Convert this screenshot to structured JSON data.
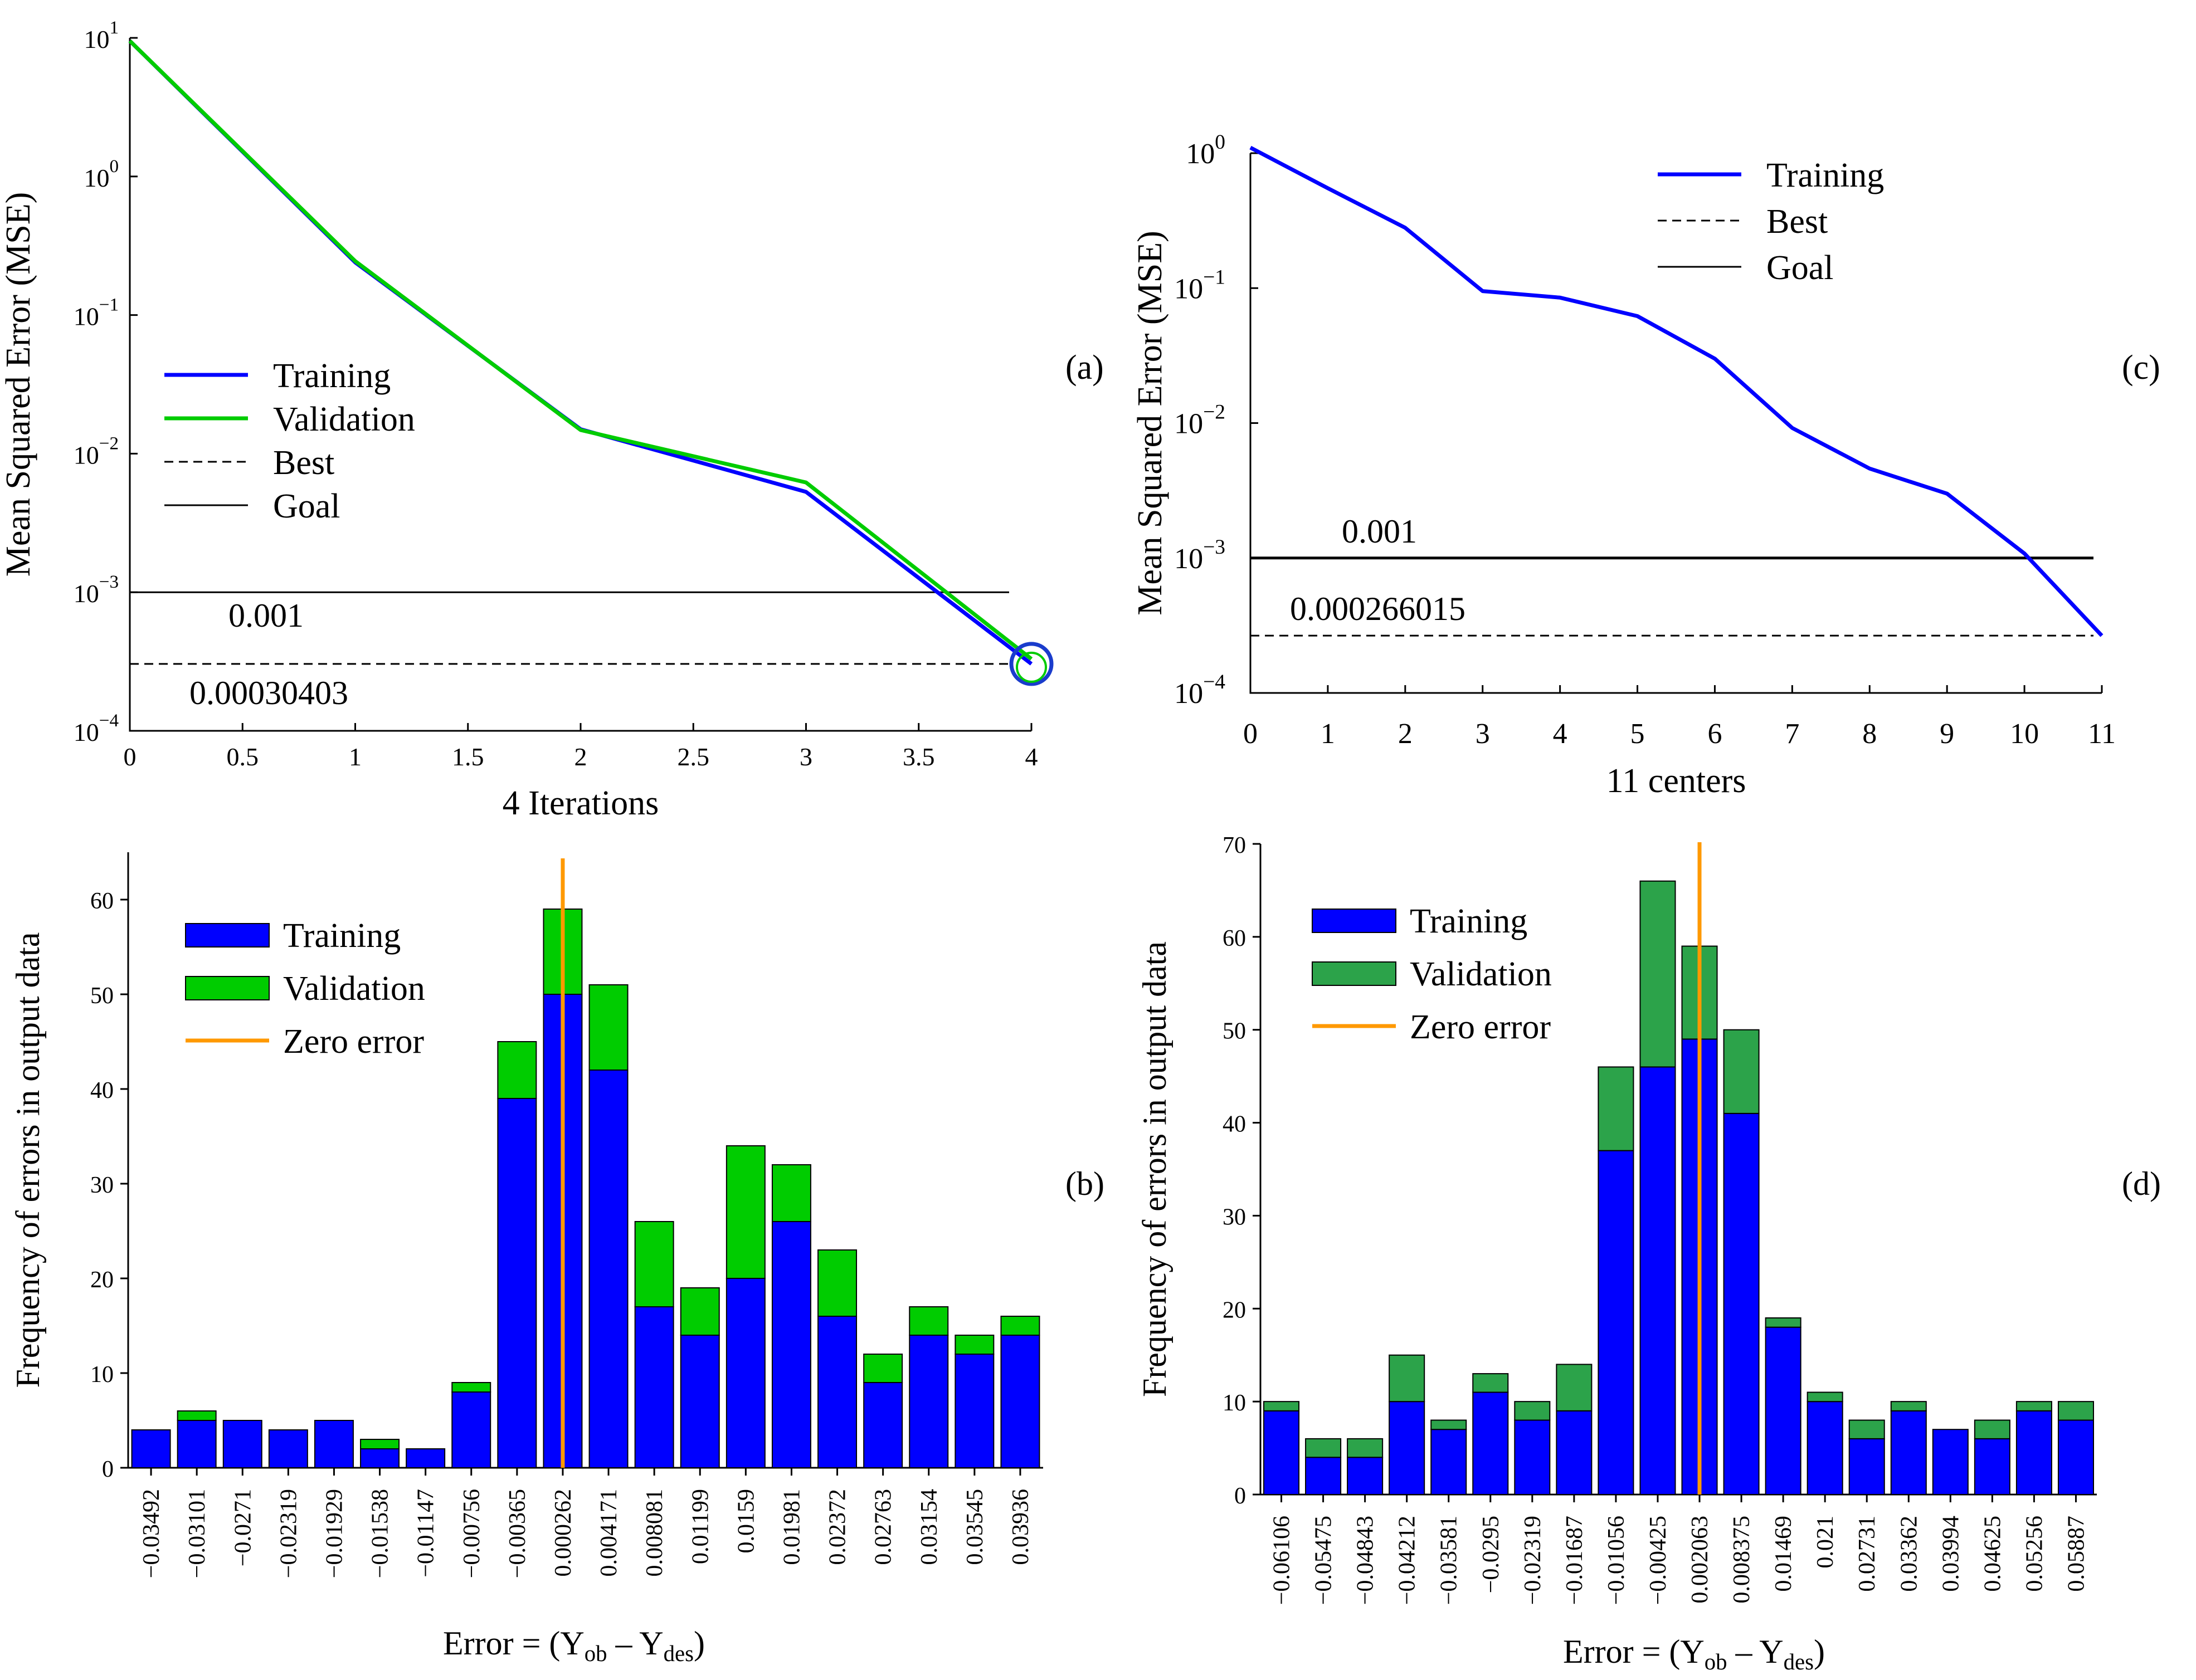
{
  "colors": {
    "training": "#0000ff",
    "validation": "#00cc00",
    "validation_d": "#2ca34a",
    "zero_error": "#ff9900",
    "best_circle": "#1a3ccc"
  },
  "chart_data": [
    {
      "id": "a",
      "panel_label": "(a)",
      "type": "line",
      "scale_y": "log",
      "xlabel": "4  Iterations",
      "ylabel": "Mean Squared Error (MSE)",
      "xlim": [
        0,
        4
      ],
      "ylim": [
        0.0001,
        10
      ],
      "x_ticks": [
        "0",
        "0.5",
        "1",
        "1.5",
        "2",
        "2.5",
        "3",
        "3.5",
        "4"
      ],
      "y_ticks": [
        {
          "base": "10",
          "exp": "1"
        },
        {
          "base": "10",
          "exp": "0"
        },
        {
          "base": "10",
          "exp": "−1"
        },
        {
          "base": "10",
          "exp": "−2"
        },
        {
          "base": "10",
          "exp": "−3"
        },
        {
          "base": "10",
          "exp": "−4"
        }
      ],
      "series": [
        {
          "name": "Training",
          "x": [
            0,
            1,
            2,
            3,
            4
          ],
          "y": [
            9.5,
            0.24,
            0.015,
            0.0053,
            0.00030403
          ]
        },
        {
          "name": "Validation",
          "x": [
            0,
            1,
            2,
            3,
            4
          ],
          "y": [
            9.5,
            0.245,
            0.0148,
            0.0062,
            0.00033
          ]
        }
      ],
      "goal": 0.001,
      "goal_label": "0.001",
      "best": 0.00030403,
      "best_label": "0.00030403",
      "legend": [
        "Training",
        "Validation",
        "Best",
        "Goal"
      ],
      "legend_position": "middle-left",
      "grid": false
    },
    {
      "id": "c",
      "panel_label": "(c)",
      "type": "line",
      "scale_y": "log",
      "xlabel": "11 centers",
      "ylabel": "Mean Squared Error (MSE)",
      "xlim": [
        0,
        11
      ],
      "ylim": [
        0.0001,
        1
      ],
      "x_ticks": [
        "0",
        "1",
        "2",
        "3",
        "4",
        "5",
        "6",
        "7",
        "8",
        "9",
        "10",
        "11"
      ],
      "y_ticks": [
        {
          "base": "10",
          "exp": "0"
        },
        {
          "base": "10",
          "exp": "−1"
        },
        {
          "base": "10",
          "exp": "−2"
        },
        {
          "base": "10",
          "exp": "−3"
        },
        {
          "base": "10",
          "exp": "−4"
        }
      ],
      "series": [
        {
          "name": "Training",
          "x": [
            0,
            1,
            2,
            3,
            4,
            5,
            6,
            7,
            8,
            9,
            10,
            11
          ],
          "y": [
            1.1,
            0.55,
            0.28,
            0.095,
            0.085,
            0.062,
            0.03,
            0.0092,
            0.0046,
            0.003,
            0.00108,
            0.000266015
          ]
        }
      ],
      "goal": 0.001,
      "goal_label": "0.001",
      "best": 0.000266015,
      "best_label": "0.000266015",
      "legend": [
        "Training",
        "Best",
        "Goal"
      ],
      "legend_position": "top-right",
      "grid": false
    },
    {
      "id": "b",
      "panel_label": "(b)",
      "type": "bar",
      "stacked": true,
      "xlabel_prefix": "Error ",
      "xlabel_eq": "= (Y",
      "xlabel_sub1": "ob",
      "xlabel_mid": " – Y",
      "xlabel_sub2": "des",
      "xlabel_end": ")",
      "ylabel": "Frequency of errors in output data",
      "ylim": [
        0,
        65
      ],
      "y_ticks": [
        "0",
        "10",
        "20",
        "30",
        "40",
        "50",
        "60"
      ],
      "categories": [
        "−0.03492",
        "−0.03101",
        "−0.0271",
        "−0.02319",
        "−0.01929",
        "−0.01538",
        "−0.01147",
        "−0.00756",
        "−0.00365",
        "0.000262",
        "0.004171",
        "0.008081",
        "0.01199",
        "0.0159",
        "0.01981",
        "0.02372",
        "0.02763",
        "0.03154",
        "0.03545",
        "0.03936"
      ],
      "series": [
        {
          "name": "Training",
          "values": [
            4,
            5,
            5,
            4,
            5,
            2,
            2,
            8,
            39,
            50,
            42,
            17,
            14,
            20,
            26,
            16,
            9,
            14,
            12,
            14
          ]
        },
        {
          "name": "Validation",
          "values": [
            0,
            1,
            0,
            0,
            0,
            1,
            0,
            1,
            6,
            9,
            9,
            9,
            5,
            14,
            6,
            7,
            3,
            3,
            2,
            2
          ]
        }
      ],
      "zero_error_position": 9.5,
      "legend": [
        "Training",
        "Validation",
        "Zero error"
      ],
      "legend_position": "top-left",
      "grid": false
    },
    {
      "id": "d",
      "panel_label": "(d)",
      "type": "bar",
      "stacked": true,
      "xlabel_prefix": "Error ",
      "xlabel_eq": "= (Y",
      "xlabel_sub1": "ob",
      "xlabel_mid": " – Y",
      "xlabel_sub2": "des",
      "xlabel_end": ")",
      "ylabel": "Frequency of errors in output data",
      "ylim": [
        0,
        70
      ],
      "y_ticks": [
        "0",
        "10",
        "20",
        "30",
        "40",
        "50",
        "60",
        "70"
      ],
      "categories": [
        "−0.06106",
        "−0.05475",
        "−0.04843",
        "−0.04212",
        "−0.03581",
        "−0.0295",
        "−0.02319",
        "−0.01687",
        "−0.01056",
        "−0.00425",
        "0.002063",
        "0.008375",
        "0.01469",
        "0.021",
        "0.02731",
        "0.03362",
        "0.03994",
        "0.04625",
        "0.05256",
        "0.05887"
      ],
      "series": [
        {
          "name": "Training",
          "values": [
            9,
            4,
            4,
            10,
            7,
            11,
            8,
            9,
            37,
            46,
            49,
            41,
            18,
            10,
            6,
            9,
            7,
            6,
            9,
            8
          ]
        },
        {
          "name": "Validation",
          "values": [
            1,
            2,
            2,
            5,
            1,
            2,
            2,
            5,
            9,
            20,
            10,
            9,
            1,
            1,
            2,
            1,
            0,
            2,
            1,
            2
          ]
        }
      ],
      "zero_error_position": 10.5,
      "legend": [
        "Training",
        "Validation",
        "Zero error"
      ],
      "legend_position": "top-left",
      "grid": false
    }
  ]
}
